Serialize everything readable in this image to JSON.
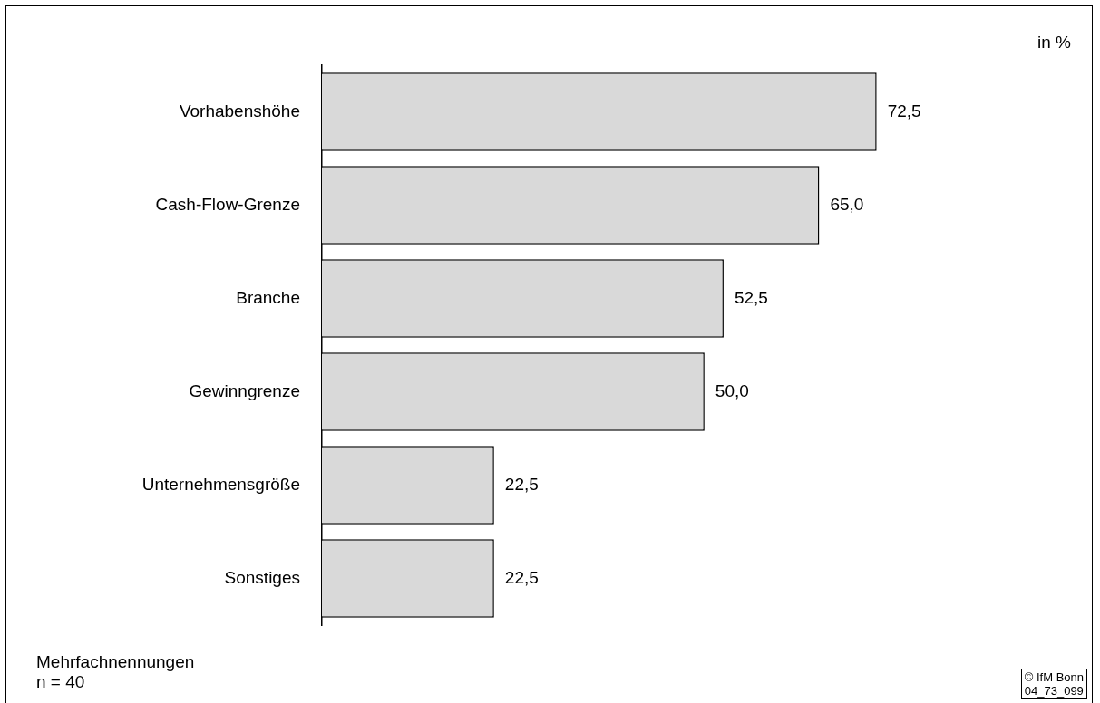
{
  "chart_data": {
    "type": "bar",
    "orientation": "horizontal",
    "categories": [
      "Vorhabenshöhe",
      "Cash-Flow-Grenze",
      "Branche",
      "Gewinngrenze",
      "Unternehmensgröße",
      "Sonstiges"
    ],
    "values": [
      72.5,
      65.0,
      52.5,
      50.0,
      22.5,
      22.5
    ],
    "value_labels": [
      "72,5",
      "65,0",
      "52,5",
      "50,0",
      "22,5",
      "22,5"
    ],
    "color": "#d9d9d9",
    "legend": false,
    "annotations": [
      "in %",
      "Mehrfachnennungen\nn = 40",
      "© IfM Bonn\n04_73_099"
    ]
  }
}
